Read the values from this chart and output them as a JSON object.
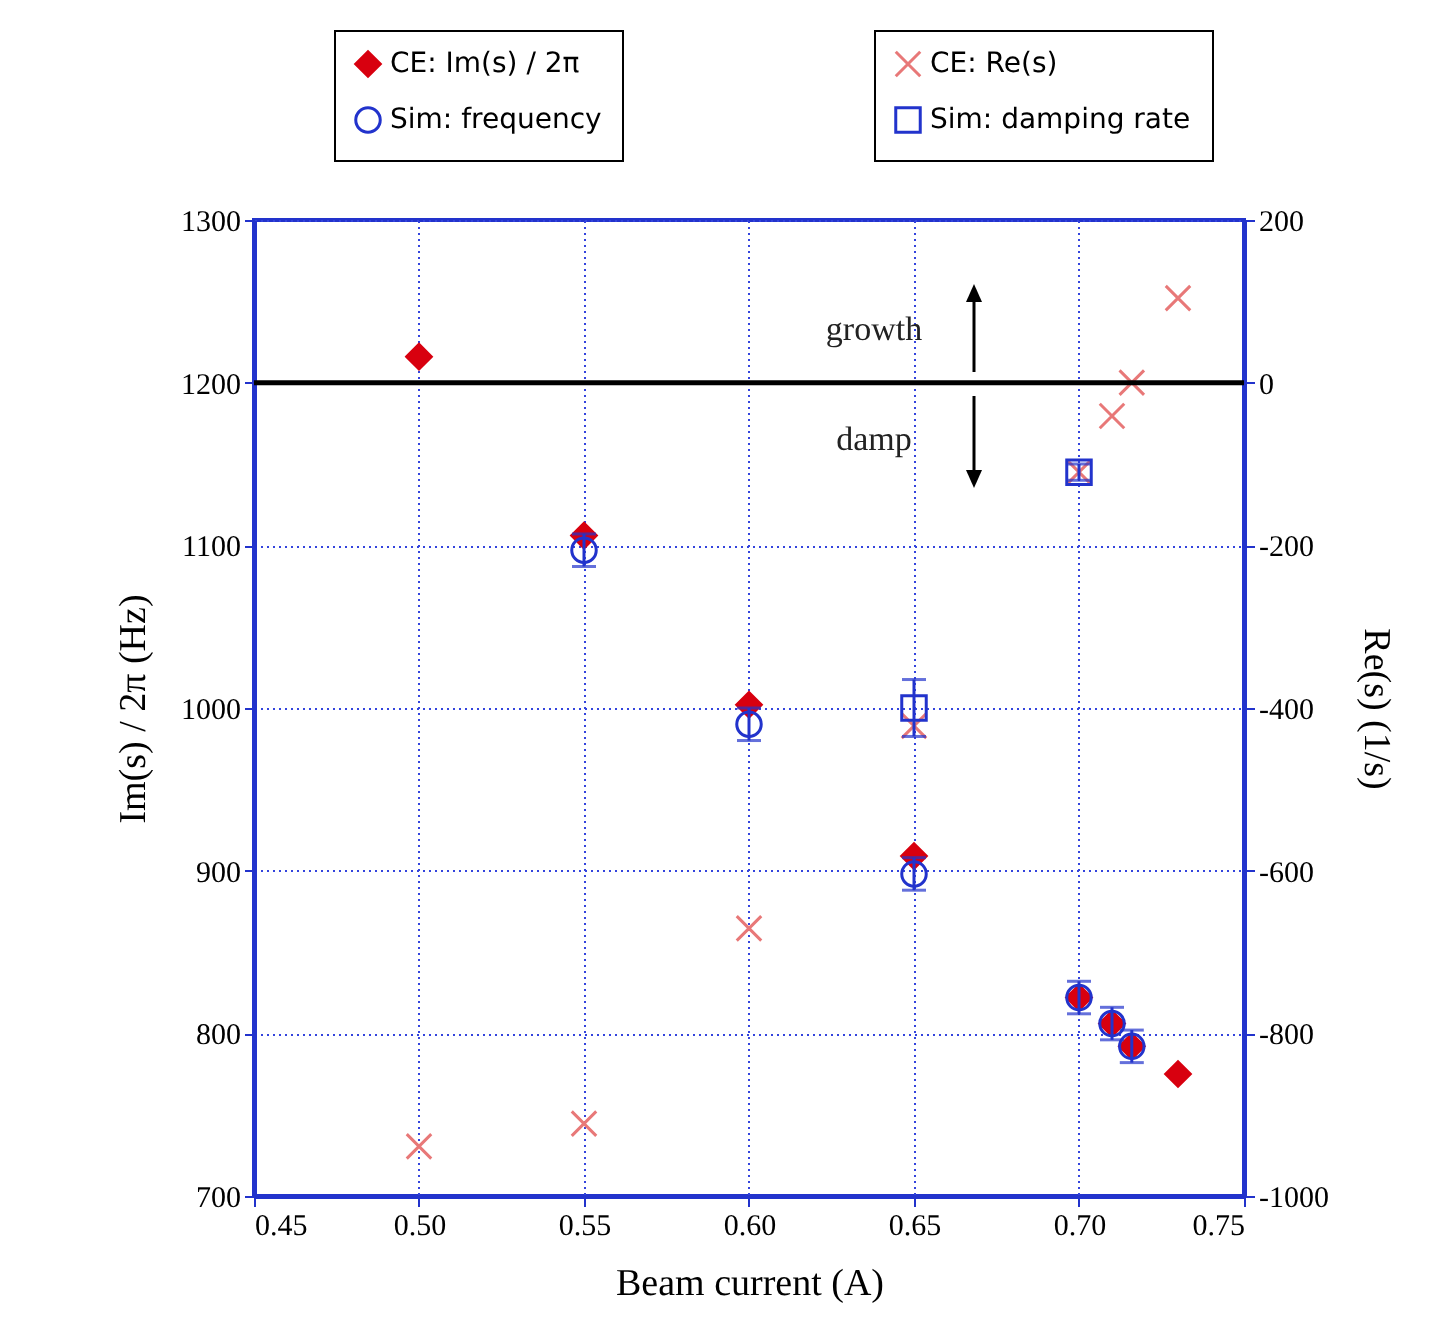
{
  "chart_data": {
    "type": "scatter",
    "xlabel": "Beam current (A)",
    "ylabel": "Im(s) / 2π (Hz)",
    "y2label": "Re(s) (1/s)",
    "xlim": [
      0.45,
      0.75
    ],
    "xticks": [
      0.45,
      {
        "value": 0.5,
        "label": "0.50"
      },
      0.55,
      {
        "value": 0.6,
        "label": "0.60"
      },
      0.65,
      {
        "value": 0.7,
        "label": "0.70"
      },
      0.75
    ],
    "ylim": [
      700,
      1300
    ],
    "yticks": [
      700,
      800,
      900,
      1000,
      1100,
      1200,
      1300
    ],
    "y2lim": [
      -1000,
      200
    ],
    "y2ticks": [
      -1000,
      -800,
      -600,
      -400,
      -200,
      0,
      200
    ],
    "grid": true,
    "legend": "top",
    "series": [
      {
        "name": "CE: Im(s) / 2π",
        "color": "#d8000f",
        "marker": "diamond",
        "x": [
          0.5,
          0.55,
          0.6,
          0.65,
          0.7,
          0.71,
          0.716,
          0.73
        ],
        "values": [
          1216,
          1106,
          1002,
          909,
          822,
          806,
          792,
          775
        ]
      },
      {
        "name": "Sim: frequency",
        "color": "#2233cc",
        "marker": "circle",
        "x": [
          0.55,
          0.6,
          0.65,
          0.7,
          0.71,
          0.716
        ],
        "values": [
          1097,
          990,
          898,
          822,
          806,
          792
        ],
        "errors": [
          10,
          10,
          10,
          10,
          10,
          10
        ]
      },
      {
        "name": "CE: Re(s)",
        "color": "#e87878",
        "marker": "cross",
        "axis": "y2",
        "x": [
          0.5,
          0.55,
          0.6,
          0.65,
          0.7,
          0.71,
          0.716,
          0.73
        ],
        "values": [
          -939,
          -911,
          -671,
          -422,
          -110,
          -41,
          0,
          104
        ]
      },
      {
        "name": "Sim: damping rate",
        "color": "#2233cc",
        "marker": "square",
        "axis": "y2",
        "x": [
          0.65,
          0.7
        ],
        "values": [
          -400,
          -110
        ],
        "errors": [
          35,
          10
        ]
      }
    ],
    "ref_lines": [
      {
        "axis": "y2",
        "value": 0,
        "label": null,
        "color": "#000000"
      }
    ],
    "annotations": [
      "growth",
      "damp"
    ]
  }
}
